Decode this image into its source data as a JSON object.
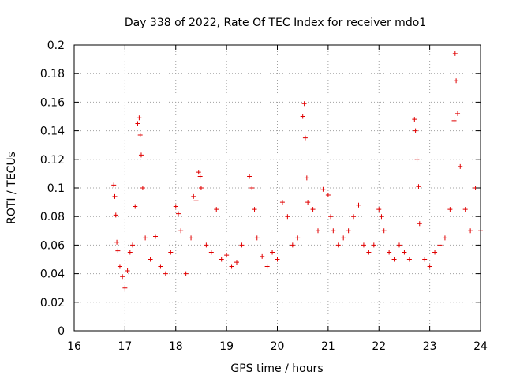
{
  "chart_data": {
    "type": "scatter",
    "title": "Day 338 of 2022, Rate Of TEC Index for receiver mdo1",
    "xlabel": "GPS time / hours",
    "ylabel": "ROTI / TECUs",
    "xlim": [
      16,
      24
    ],
    "ylim": [
      0,
      0.2
    ],
    "xticks": [
      16,
      17,
      18,
      19,
      20,
      21,
      22,
      23,
      24
    ],
    "xtick_labels": [
      "16",
      "17",
      "18",
      "19",
      "20",
      "21",
      "22",
      "23",
      "24"
    ],
    "yticks": [
      0,
      0.02,
      0.04,
      0.06,
      0.08,
      0.1,
      0.12,
      0.14,
      0.16,
      0.18,
      0.2
    ],
    "ytick_labels": [
      "0",
      "0.02",
      "0.04",
      "0.06",
      "0.08",
      "0.1",
      "0.12",
      "0.14",
      "0.16",
      "0.18",
      "0.2"
    ],
    "grid": true,
    "marker": "plus",
    "color": "#e00000",
    "series": [
      {
        "name": "ROTI",
        "x": [
          16.78,
          16.8,
          16.82,
          16.84,
          16.86,
          16.9,
          16.95,
          17.0,
          17.05,
          17.1,
          17.15,
          17.2,
          17.25,
          17.28,
          17.3,
          17.32,
          17.35,
          17.4,
          17.5,
          17.6,
          17.7,
          17.8,
          17.9,
          18.0,
          18.05,
          18.1,
          18.2,
          18.3,
          18.35,
          18.4,
          18.45,
          18.48,
          18.5,
          18.6,
          18.7,
          18.8,
          18.9,
          19.0,
          19.1,
          19.2,
          19.3,
          19.45,
          19.5,
          19.55,
          19.6,
          19.7,
          19.8,
          19.9,
          20.0,
          20.1,
          20.2,
          20.3,
          20.4,
          20.5,
          20.53,
          20.55,
          20.58,
          20.6,
          20.7,
          20.8,
          20.9,
          21.0,
          21.05,
          21.1,
          21.2,
          21.3,
          21.4,
          21.5,
          21.6,
          21.7,
          21.8,
          21.9,
          22.0,
          22.05,
          22.1,
          22.2,
          22.3,
          22.4,
          22.5,
          22.6,
          22.7,
          22.72,
          22.75,
          22.78,
          22.8,
          22.9,
          23.0,
          23.1,
          23.2,
          23.3,
          23.4,
          23.48,
          23.5,
          23.52,
          23.55,
          23.6,
          23.7,
          23.8,
          23.9,
          24.0
        ],
        "y": [
          0.102,
          0.094,
          0.081,
          0.062,
          0.056,
          0.045,
          0.038,
          0.03,
          0.042,
          0.055,
          0.06,
          0.087,
          0.145,
          0.149,
          0.137,
          0.123,
          0.1,
          0.065,
          0.05,
          0.066,
          0.045,
          0.04,
          0.055,
          0.087,
          0.082,
          0.07,
          0.04,
          0.065,
          0.094,
          0.091,
          0.111,
          0.108,
          0.1,
          0.06,
          0.055,
          0.085,
          0.05,
          0.053,
          0.045,
          0.048,
          0.06,
          0.108,
          0.1,
          0.085,
          0.065,
          0.052,
          0.045,
          0.055,
          0.05,
          0.09,
          0.08,
          0.06,
          0.065,
          0.15,
          0.159,
          0.135,
          0.107,
          0.09,
          0.085,
          0.07,
          0.099,
          0.095,
          0.08,
          0.07,
          0.06,
          0.065,
          0.07,
          0.08,
          0.088,
          0.06,
          0.055,
          0.06,
          0.085,
          0.08,
          0.07,
          0.055,
          0.05,
          0.06,
          0.055,
          0.05,
          0.148,
          0.14,
          0.12,
          0.101,
          0.075,
          0.05,
          0.045,
          0.055,
          0.06,
          0.065,
          0.085,
          0.147,
          0.194,
          0.175,
          0.152,
          0.115,
          0.085,
          0.07,
          0.1,
          0.07
        ]
      }
    ]
  }
}
